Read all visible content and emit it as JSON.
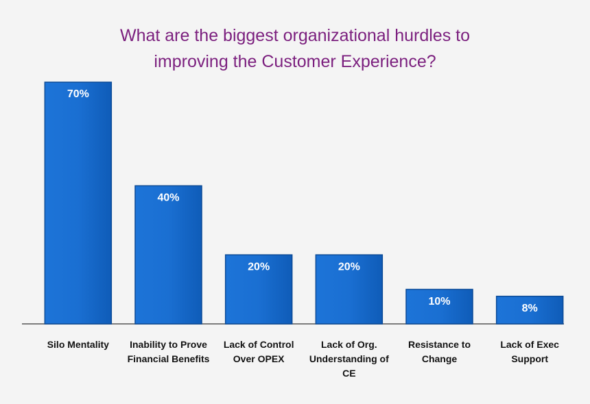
{
  "chart_data": {
    "type": "bar",
    "title": "What are the biggest organizational hurdles to improving the Customer Experience?",
    "categories": [
      "Silo Mentality",
      "Inability to Prove Financial Benefits",
      "Lack of Control Over OPEX",
      "Lack of Org. Understanding of CE",
      "Resistance to Change",
      "Lack of Exec Support"
    ],
    "values": [
      70,
      40,
      20,
      20,
      10,
      8
    ],
    "value_labels": [
      "70%",
      "40%",
      "20%",
      "20%",
      "10%",
      "8%"
    ],
    "color": "#1769cc",
    "ylim": [
      0,
      70
    ]
  }
}
